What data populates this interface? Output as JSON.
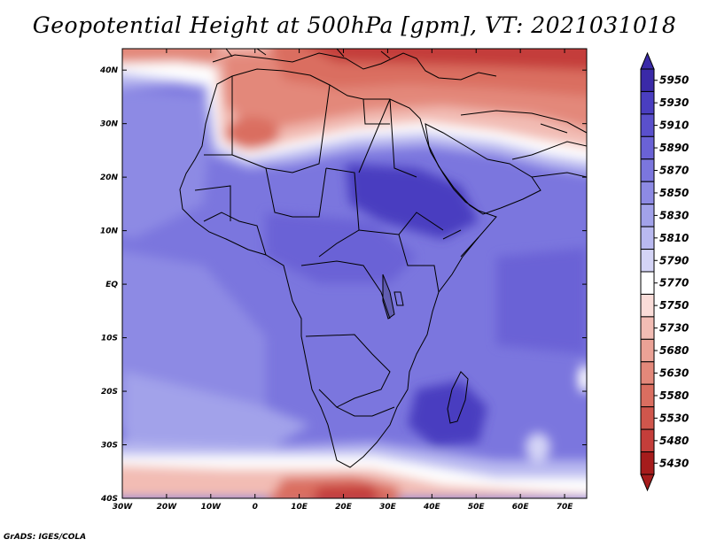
{
  "title": "Geopotential Height at 500hPa [gpm], VT: 2021031018",
  "footer": "GrADS: IGES/COLA",
  "map": {
    "lon_ticks": [
      "30W",
      "20W",
      "10W",
      "0",
      "10E",
      "20E",
      "30E",
      "40E",
      "50E",
      "60E",
      "70E"
    ],
    "lat_ticks": [
      "40N",
      "30N",
      "20N",
      "10N",
      "EQ",
      "10S",
      "20S",
      "30S",
      "40S"
    ]
  },
  "colorbar": {
    "levels": [
      "5950",
      "5930",
      "5910",
      "5890",
      "5870",
      "5850",
      "5830",
      "5810",
      "5790",
      "5770",
      "5750",
      "5730",
      "5680",
      "5630",
      "5580",
      "5530",
      "5480",
      "5430"
    ],
    "colors": [
      "#3a2aa8",
      "#4a3ec0",
      "#5a50cc",
      "#6a62d6",
      "#7b76de",
      "#8d8ae4",
      "#a2a2ea",
      "#b9b9f0",
      "#d4d4f6",
      "#ffffff",
      "#fadcd8",
      "#f2bcb4",
      "#eba296",
      "#e3887a",
      "#da6e60",
      "#d0564c",
      "#c43e3a",
      "#a61c1c"
    ]
  }
}
